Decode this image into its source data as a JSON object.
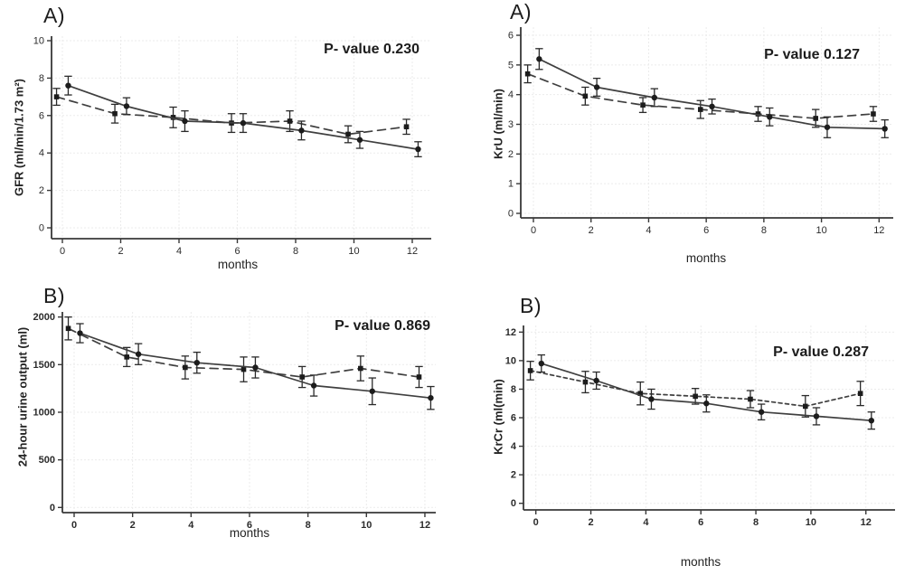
{
  "figure": {
    "background": "#ffffff",
    "line_color": "#3f3f3f",
    "marker_color": "#1c1c1c",
    "errorbar_color": "#2a2a2a",
    "axis_color": "#383838",
    "grid_color": "#ebebeb",
    "text_color": "#2b2b2b"
  },
  "chart_data": [
    {
      "type": "line",
      "panel_label": "A)",
      "p_value": "P- value 0.230",
      "ylabel": "GFR (ml/min/1.73 m²)",
      "xlabel": "months",
      "xticks": [
        0,
        2,
        4,
        6,
        8,
        10,
        12
      ],
      "yticks": [
        0,
        2,
        4,
        6,
        8,
        10
      ],
      "xlim": [
        -0.4,
        12.7
      ],
      "ylim": [
        0,
        10
      ],
      "grid": true,
      "legend": "none",
      "series": [
        {
          "name": "dashed-line-group",
          "line": "dashed",
          "marker": "square",
          "x": [
            -0.2,
            1.8,
            3.8,
            5.8,
            7.8,
            9.8,
            11.8
          ],
          "y": [
            7.0,
            6.1,
            5.9,
            5.6,
            5.7,
            5.0,
            5.4
          ],
          "err": [
            0.45,
            0.5,
            0.55,
            0.5,
            0.55,
            0.45,
            0.4
          ]
        },
        {
          "name": "solid-line-group",
          "line": "solid",
          "marker": "circle",
          "x": [
            0.2,
            2.2,
            4.2,
            6.2,
            8.2,
            10.2,
            12.2
          ],
          "y": [
            7.6,
            6.5,
            5.7,
            5.6,
            5.2,
            4.7,
            4.2
          ],
          "err": [
            0.5,
            0.45,
            0.55,
            0.5,
            0.5,
            0.45,
            0.4
          ]
        }
      ]
    },
    {
      "type": "line",
      "panel_label": "A)",
      "p_value": "P- value 0.127",
      "ylabel": "KrU (ml/min)",
      "xlabel": "months",
      "xticks": [
        0,
        2,
        4,
        6,
        8,
        10,
        12
      ],
      "yticks": [
        0,
        1,
        2,
        3,
        4,
        5,
        6
      ],
      "xlim": [
        -0.4,
        12.7
      ],
      "ylim": [
        0,
        6
      ],
      "grid": true,
      "legend": "none",
      "series": [
        {
          "name": "dashed-line-group",
          "line": "dashed",
          "marker": "square",
          "x": [
            -0.2,
            1.8,
            3.8,
            5.8,
            7.8,
            9.8,
            11.8
          ],
          "y": [
            4.7,
            3.95,
            3.65,
            3.5,
            3.35,
            3.2,
            3.35
          ],
          "err": [
            0.3,
            0.3,
            0.25,
            0.3,
            0.25,
            0.3,
            0.25
          ]
        },
        {
          "name": "solid-line-group",
          "line": "solid",
          "marker": "circle",
          "x": [
            0.2,
            2.2,
            4.2,
            6.2,
            8.2,
            10.2,
            12.2
          ],
          "y": [
            5.2,
            4.25,
            3.9,
            3.6,
            3.25,
            2.9,
            2.85
          ],
          "err": [
            0.35,
            0.3,
            0.3,
            0.25,
            0.3,
            0.35,
            0.3
          ]
        }
      ]
    },
    {
      "type": "line",
      "panel_label": "B)",
      "p_value": "P- value 0.869",
      "ylabel": "24-hour urine output (ml)",
      "xlabel": "months",
      "xticks": [
        0,
        2,
        4,
        6,
        8,
        10,
        12
      ],
      "yticks": [
        0,
        500,
        1000,
        1500,
        2000
      ],
      "xlim": [
        -0.4,
        12.4
      ],
      "ylim": [
        0,
        2000
      ],
      "grid": true,
      "legend": "none",
      "series": [
        {
          "name": "dashed-line-group",
          "line": "dashed",
          "marker": "square",
          "x": [
            -0.2,
            1.8,
            3.8,
            5.8,
            7.8,
            9.8,
            11.8
          ],
          "y": [
            1880,
            1580,
            1470,
            1450,
            1370,
            1460,
            1370
          ],
          "err": [
            120,
            100,
            120,
            130,
            110,
            130,
            110
          ]
        },
        {
          "name": "solid-line-group",
          "line": "solid",
          "marker": "circle",
          "x": [
            0.2,
            2.2,
            4.2,
            6.2,
            8.2,
            10.2,
            12.2
          ],
          "y": [
            1830,
            1610,
            1520,
            1470,
            1280,
            1220,
            1150
          ],
          "err": [
            100,
            110,
            110,
            110,
            110,
            140,
            120
          ]
        }
      ]
    },
    {
      "type": "line",
      "panel_label": "B)",
      "p_value": "P- value 0.287",
      "ylabel": "KrCr (ml(min)",
      "xlabel": "months",
      "xticks": [
        0,
        2,
        4,
        6,
        8,
        10,
        12
      ],
      "yticks": [
        0,
        2,
        4,
        6,
        8,
        10,
        12
      ],
      "xlim": [
        -0.45,
        13.1
      ],
      "ylim": [
        0,
        12
      ],
      "grid": true,
      "legend": "none",
      "series": [
        {
          "name": "dashed-line-group",
          "line": "short-dashed",
          "marker": "square",
          "x": [
            -0.2,
            1.8,
            3.8,
            5.8,
            7.8,
            9.8,
            11.8
          ],
          "y": [
            9.3,
            8.5,
            7.7,
            7.5,
            7.3,
            6.8,
            7.7
          ],
          "err": [
            0.65,
            0.75,
            0.8,
            0.55,
            0.6,
            0.75,
            0.85
          ]
        },
        {
          "name": "solid-line-group",
          "line": "solid",
          "marker": "circle",
          "x": [
            0.2,
            2.2,
            4.2,
            6.2,
            8.2,
            10.2,
            12.2
          ],
          "y": [
            9.8,
            8.6,
            7.3,
            7.0,
            6.4,
            6.1,
            5.8
          ],
          "err": [
            0.6,
            0.6,
            0.7,
            0.6,
            0.55,
            0.6,
            0.6
          ]
        }
      ]
    }
  ]
}
